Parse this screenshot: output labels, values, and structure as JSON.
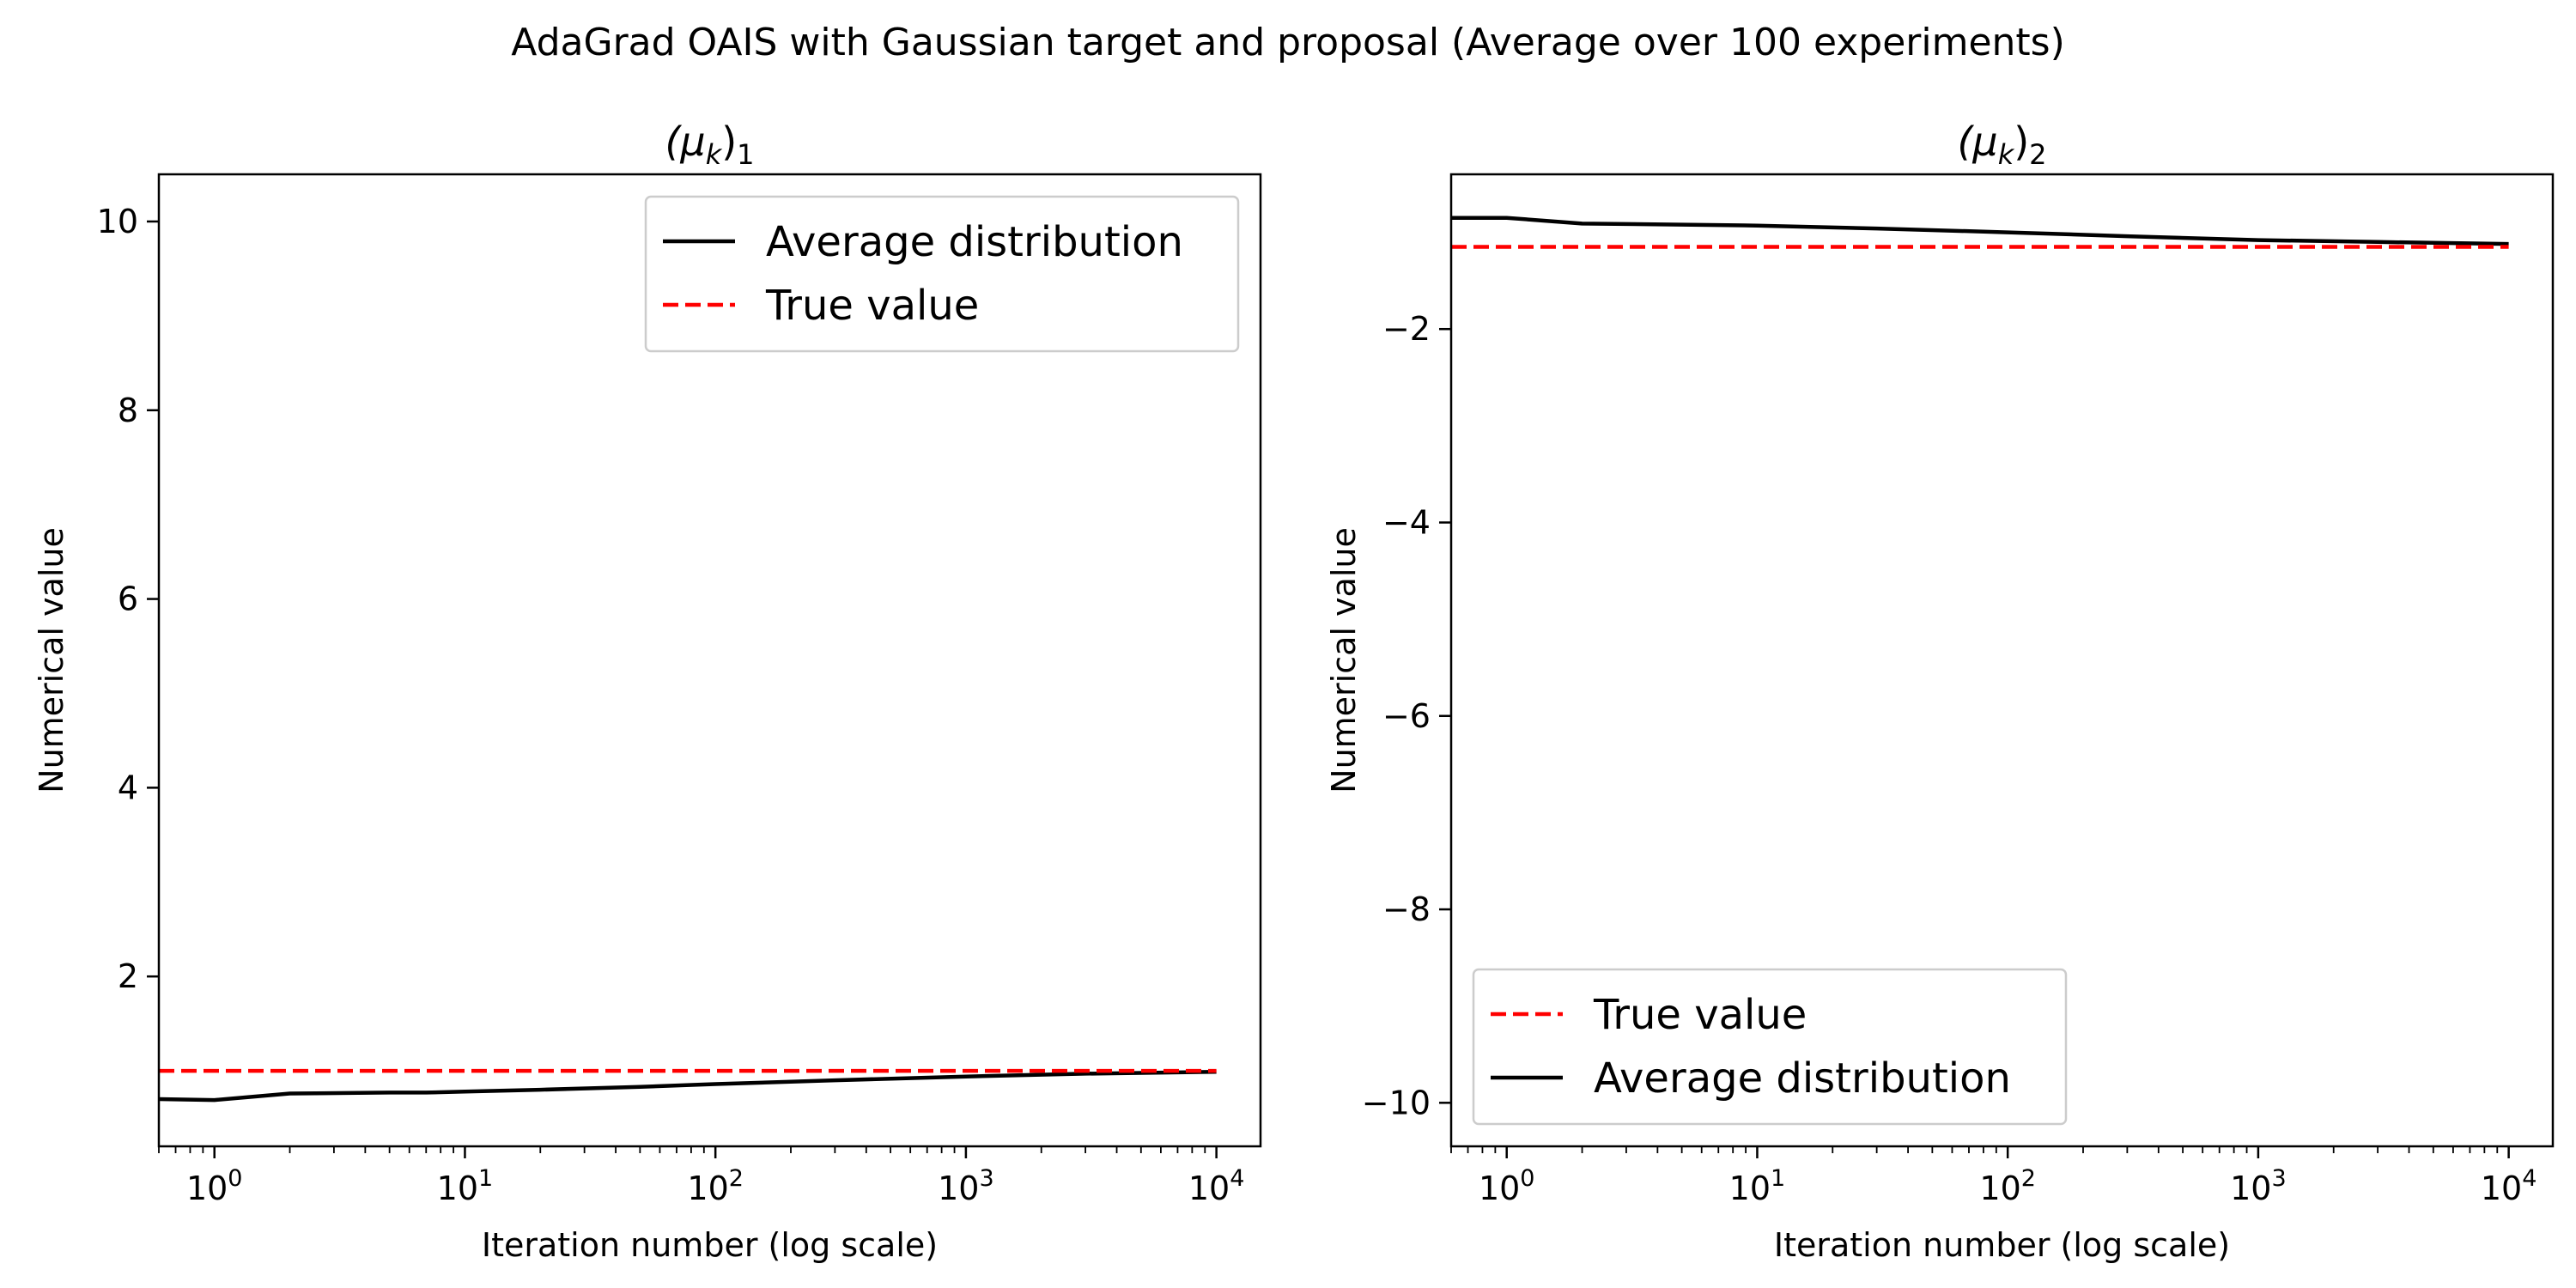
{
  "figure": {
    "suptitle": "AdaGrad OAIS with Gaussian target and proposal (Average over 100 experiments)"
  },
  "chart_data": [
    {
      "type": "line",
      "title": "(μk)1",
      "title_parts": {
        "main": "(μ",
        "sub": "k",
        "close": ")",
        "index": "1"
      },
      "xlabel": "Iteration number (log scale)",
      "ylabel": "Numerical value",
      "xscale": "log",
      "xlim": [
        0.6,
        15000
      ],
      "ylim": [
        0.2,
        10.5
      ],
      "xticks": [
        {
          "value": 1,
          "base": "10",
          "exp": "0"
        },
        {
          "value": 10,
          "base": "10",
          "exp": "1"
        },
        {
          "value": 100,
          "base": "10",
          "exp": "2"
        },
        {
          "value": 1000,
          "base": "10",
          "exp": "3"
        },
        {
          "value": 10000,
          "base": "10",
          "exp": "4"
        }
      ],
      "yticks": [
        {
          "value": 2,
          "label": "2"
        },
        {
          "value": 4,
          "label": "4"
        },
        {
          "value": 6,
          "label": "6"
        },
        {
          "value": 8,
          "label": "8"
        },
        {
          "value": 10,
          "label": "10"
        }
      ],
      "grid": false,
      "legend_position": "upper right",
      "legend_order": [
        "Average distribution",
        "True value"
      ],
      "series": [
        {
          "name": "Average distribution",
          "color": "#000000",
          "style": "solid",
          "x": [
            0.6,
            1,
            2,
            5,
            7,
            10,
            20,
            50,
            100,
            300,
            1000,
            3000,
            10000
          ],
          "y": [
            0.7,
            0.69,
            0.76,
            0.77,
            0.77,
            0.78,
            0.8,
            0.83,
            0.86,
            0.9,
            0.94,
            0.97,
            0.99
          ]
        },
        {
          "name": "True value",
          "color": "#ff0000",
          "style": "dashed",
          "x": [
            0.6,
            10000
          ],
          "y": [
            1.0,
            1.0
          ]
        }
      ]
    },
    {
      "type": "line",
      "title": "(μk)2",
      "title_parts": {
        "main": "(μ",
        "sub": "k",
        "close": ")",
        "index": "2"
      },
      "xlabel": "Iteration number (log scale)",
      "ylabel": "Numerical value",
      "xscale": "log",
      "xlim": [
        0.6,
        15000
      ],
      "ylim": [
        -10.45,
        -0.4
      ],
      "xticks": [
        {
          "value": 1,
          "base": "10",
          "exp": "0"
        },
        {
          "value": 10,
          "base": "10",
          "exp": "1"
        },
        {
          "value": 100,
          "base": "10",
          "exp": "2"
        },
        {
          "value": 1000,
          "base": "10",
          "exp": "3"
        },
        {
          "value": 10000,
          "base": "10",
          "exp": "4"
        }
      ],
      "yticks": [
        {
          "value": -2,
          "label": "−2"
        },
        {
          "value": -4,
          "label": "−4"
        },
        {
          "value": -6,
          "label": "−6"
        },
        {
          "value": -8,
          "label": "−8"
        },
        {
          "value": -10,
          "label": "−10"
        }
      ],
      "grid": false,
      "legend_position": "lower left",
      "legend_order": [
        "True value",
        "Average distribution"
      ],
      "series": [
        {
          "name": "Average distribution",
          "color": "#000000",
          "style": "solid",
          "x": [
            0.6,
            1,
            2,
            5,
            10,
            30,
            100,
            300,
            1000,
            3000,
            10000
          ],
          "y": [
            -0.85,
            -0.85,
            -0.91,
            -0.92,
            -0.93,
            -0.96,
            -1.0,
            -1.04,
            -1.08,
            -1.1,
            -1.12
          ]
        },
        {
          "name": "True value",
          "color": "#ff0000",
          "style": "dashed",
          "x": [
            0.6,
            10000
          ],
          "y": [
            -1.15,
            -1.15
          ]
        }
      ]
    }
  ]
}
